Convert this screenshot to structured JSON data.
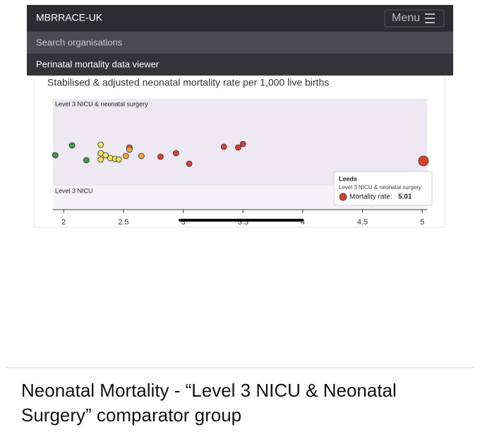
{
  "header": {
    "brand": "MBRRACE-UK",
    "menu": "Menu"
  },
  "search": {
    "placeholder": "Search organisations"
  },
  "nav": {
    "title": "Perinatal mortality data viewer"
  },
  "chart_data": {
    "type": "scatter",
    "title": "Stabilised & adjusted neonatal mortality rate per 1,000 live births",
    "groups": [
      "Level 3 NICU & neonatal surgery",
      "Level 3 NICU"
    ],
    "x": [
      1.93,
      2.07,
      2.19,
      2.31,
      2.31,
      2.31,
      2.35,
      2.39,
      2.43,
      2.46,
      2.52,
      2.55,
      2.55,
      2.65,
      2.81,
      2.94,
      3.05,
      3.34,
      3.46,
      3.5,
      5.01
    ],
    "colors": [
      "#3e9a45",
      "#3e9a45",
      "#3e9a45",
      "#f2e55a",
      "#f2e55a",
      "#f2e55a",
      "#f2e55a",
      "#f2e55a",
      "#f2e55a",
      "#f2e55a",
      "#f0a63a",
      "#e0602e",
      "#f0a63a",
      "#f0a63a",
      "#d9402f",
      "#d9402f",
      "#d9402f",
      "#d9402f",
      "#d9402f",
      "#d9402f",
      "#d9402f"
    ],
    "xlim": [
      1.91,
      5.04
    ],
    "xticks": [
      2,
      2.5,
      3,
      3.5,
      4,
      4.5,
      5
    ],
    "tooltip": {
      "name": "Leeds",
      "group": "Level 3 NICU & neonatal surgery",
      "label": "Mortality rate:"
    }
  },
  "caption": {
    "lines": [
      "Neonatal Mortality - “Level 3 NICU & Neonatal",
      "Surgery” comparator group"
    ]
  }
}
